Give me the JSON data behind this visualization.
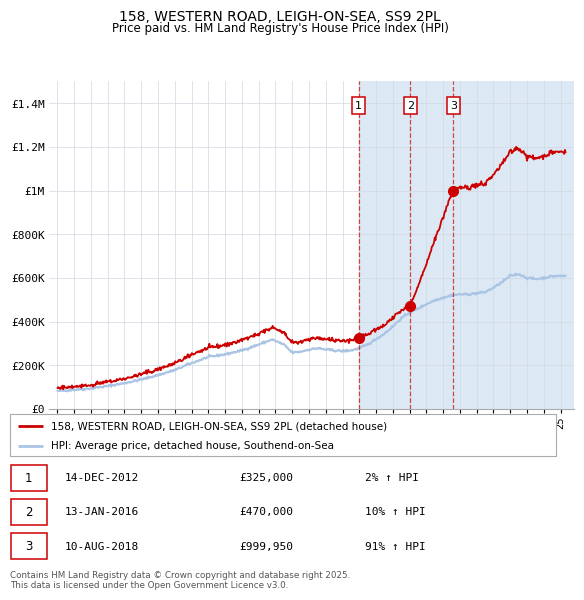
{
  "title1": "158, WESTERN ROAD, LEIGH-ON-SEA, SS9 2PL",
  "title2": "Price paid vs. HM Land Registry's House Price Index (HPI)",
  "legend_line1": "158, WESTERN ROAD, LEIGH-ON-SEA, SS9 2PL (detached house)",
  "legend_line2": "HPI: Average price, detached house, Southend-on-Sea",
  "footer": "Contains HM Land Registry data © Crown copyright and database right 2025.\nThis data is licensed under the Open Government Licence v3.0.",
  "transaction1_date": "14-DEC-2012",
  "transaction1_price": "£325,000",
  "transaction1_hpi": "2% ↑ HPI",
  "transaction2_date": "13-JAN-2016",
  "transaction2_price": "£470,000",
  "transaction2_hpi": "10% ↑ HPI",
  "transaction3_date": "10-AUG-2018",
  "transaction3_price": "£999,950",
  "transaction3_hpi": "91% ↑ HPI",
  "transaction1_x": 2012.96,
  "transaction1_y": 325000,
  "transaction2_x": 2016.04,
  "transaction2_y": 470000,
  "transaction3_x": 2018.61,
  "transaction3_y": 999950,
  "hpi_color": "#aac4e4",
  "price_color": "#cc0000",
  "marker_color": "#cc0000",
  "background_shade": "#dce9f5",
  "background_shade_start": 2012.96,
  "ylim": [
    0,
    1500000
  ],
  "yticks": [
    0,
    200000,
    400000,
    600000,
    800000,
    1000000,
    1200000,
    1400000
  ],
  "ytick_labels": [
    "£0",
    "£200K",
    "£400K",
    "£600K",
    "£800K",
    "£1M",
    "£1.2M",
    "£1.4M"
  ],
  "xlim_start": 1994.5,
  "xlim_end": 2025.8
}
